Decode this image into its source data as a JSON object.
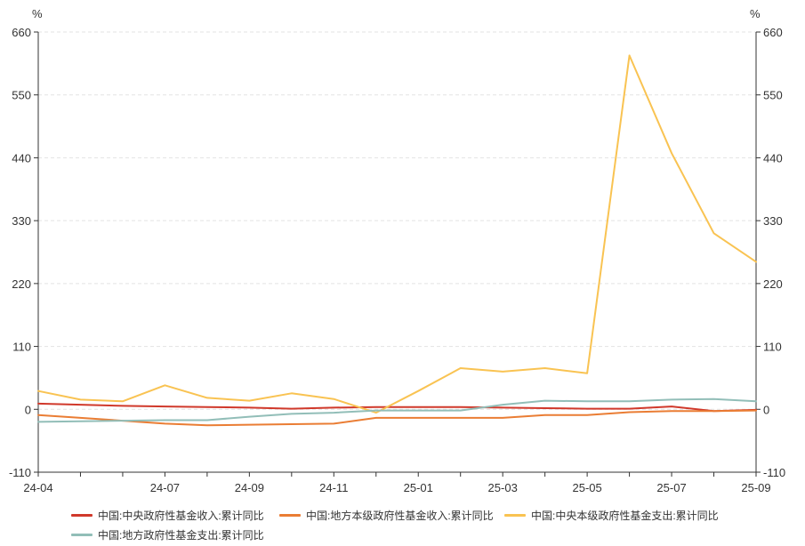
{
  "chart_data": {
    "type": "line",
    "title": "",
    "xlabel": "",
    "ylabel": "",
    "y_unit_left": "%",
    "y_unit_right": "%",
    "ylim": [
      -110,
      660
    ],
    "yticks": [
      "660",
      "550",
      "440",
      "330",
      "220",
      "110",
      "0",
      "-110"
    ],
    "ytick_values": [
      660,
      550,
      440,
      330,
      220,
      110,
      0,
      -110
    ],
    "x": [
      "24-04",
      "24-05",
      "24-06",
      "24-07",
      "24-08",
      "24-09",
      "24-10",
      "24-11",
      "24-12",
      "25-01",
      "25-02",
      "25-03",
      "25-04",
      "25-05",
      "25-06",
      "25-07",
      "25-08",
      "25-09"
    ],
    "xtick_labels": [
      "24-04",
      "24-07",
      "24-09",
      "24-11",
      "25-01",
      "25-03",
      "25-05",
      "25-07",
      "25-09"
    ],
    "grid": true,
    "legend_position": "bottom",
    "series": [
      {
        "name": "中国:中央政府性基金收入:累计同比",
        "color": "#d0392b",
        "values": [
          10,
          8,
          6,
          5,
          4,
          3,
          1,
          3,
          4,
          4,
          4,
          3,
          2,
          1,
          1,
          5,
          -3,
          -1
        ]
      },
      {
        "name": "中国:地方本级政府性基金收入:累计同比",
        "color": "#ea7d34",
        "values": [
          -10,
          -15,
          -20,
          -25,
          -28,
          -27,
          -26,
          -25,
          -15,
          -15,
          -15,
          -15,
          -10,
          -10,
          -5,
          -3,
          -3,
          -2
        ]
      },
      {
        "name": "中国:中央本级政府性基金支出:累计同比",
        "color": "#f9c352",
        "values": [
          32,
          17,
          14,
          42,
          20,
          15,
          28,
          18,
          -6,
          32,
          72,
          66,
          72,
          63,
          619,
          448,
          308,
          258
        ]
      },
      {
        "name": "中国:地方政府性基金支出:累计同比",
        "color": "#92beb8",
        "values": [
          -22,
          -21,
          -20,
          -19,
          -19,
          -13,
          -8,
          -6,
          -2,
          -2,
          -2,
          8,
          15,
          14,
          14,
          17,
          18,
          14
        ]
      }
    ]
  }
}
